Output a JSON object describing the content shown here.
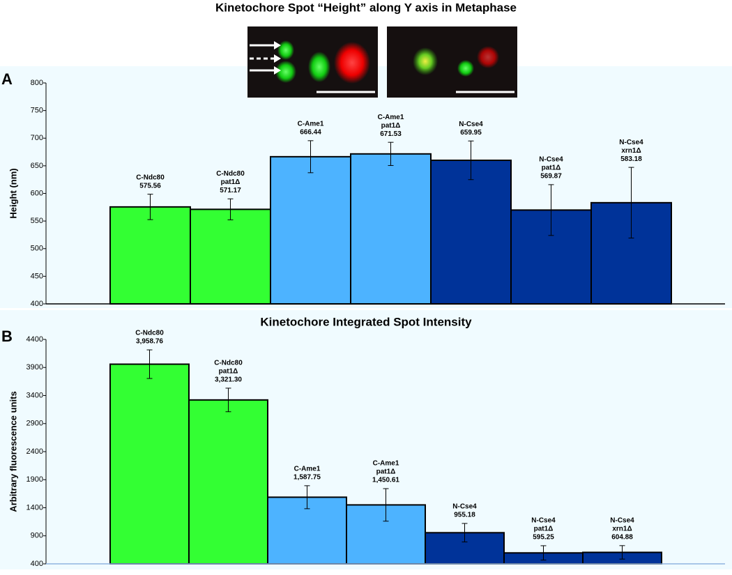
{
  "title": "Kinetochore Spot “Height” along Y axis in Metaphase",
  "chart_data": [
    {
      "type": "bar",
      "panel": "A",
      "ylabel": "Height (nm)",
      "categories": [
        [
          "C-Ndc80"
        ],
        [
          "C-Ndc80",
          "pat1Δ"
        ],
        [
          "C-Ame1"
        ],
        [
          "C-Ame1",
          "pat1Δ"
        ],
        [
          "N-Cse4"
        ],
        [
          "N-Cse4",
          "pat1Δ"
        ],
        [
          "N-Cse4",
          "xrn1Δ"
        ]
      ],
      "values": [
        575.56,
        571.17,
        666.44,
        671.53,
        659.95,
        569.87,
        583.18
      ],
      "errors": [
        23,
        19,
        29,
        21,
        35,
        46,
        64
      ],
      "colors": [
        "#33ff33",
        "#33ff33",
        "#4db3ff",
        "#4db3ff",
        "#003399",
        "#003399",
        "#003399"
      ],
      "ylim": [
        400,
        800
      ],
      "yticks": [
        400,
        450,
        500,
        550,
        600,
        650,
        700,
        750,
        800
      ]
    },
    {
      "type": "bar",
      "panel": "B",
      "title": "Kinetochore Integrated Spot Intensity",
      "ylabel": "Arbitrary fluorescence units",
      "categories": [
        [
          "C-Ndc80"
        ],
        [
          "C-Ndc80",
          "pat1Δ"
        ],
        [
          "C-Ame1"
        ],
        [
          "C-Ame1",
          "pat1Δ"
        ],
        [
          "N-Cse4"
        ],
        [
          "N-Cse4",
          "pat1Δ"
        ],
        [
          "N-Cse4",
          "xrn1Δ"
        ]
      ],
      "values": [
        3958.76,
        3321.3,
        1587.75,
        1450.61,
        955.18,
        595.25,
        604.88
      ],
      "value_labels": [
        "3,958.76",
        "3,321.30",
        "1,587.75",
        "1,450.61",
        "955.18",
        "595.25",
        "604.88"
      ],
      "errors": [
        255,
        210,
        205,
        290,
        165,
        128,
        120
      ],
      "colors": [
        "#33ff33",
        "#33ff33",
        "#4db3ff",
        "#4db3ff",
        "#003399",
        "#003399",
        "#003399"
      ],
      "ylim": [
        400,
        4400
      ],
      "yticks": [
        400,
        900,
        1400,
        1900,
        2400,
        2900,
        3400,
        3900,
        4400
      ]
    }
  ]
}
